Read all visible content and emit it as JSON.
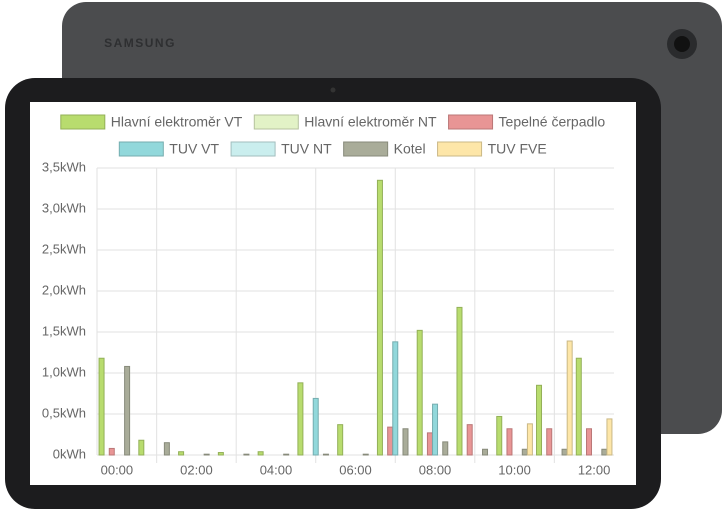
{
  "device": {
    "brand": "SAMSUNG"
  },
  "chart_data": {
    "type": "bar",
    "categories": [
      "00:00",
      null,
      "02:00",
      null,
      "04:00",
      null,
      "06:00",
      null,
      "08:00",
      null,
      "10:00",
      null,
      "12:00"
    ],
    "series": [
      {
        "name": "Hlavní elektroměr VT",
        "color": "#b8dc6e",
        "values": [
          1.18,
          0.18,
          0.04,
          0.03,
          0.04,
          0.88,
          0.37,
          3.35,
          1.52,
          1.8,
          0.47,
          0.85,
          1.18
        ]
      },
      {
        "name": "Hlavní elektroměr NT",
        "color": "#e2f2c6",
        "values": [
          0,
          0,
          0,
          0,
          0,
          0,
          0,
          0,
          0,
          0,
          0,
          0,
          0
        ]
      },
      {
        "name": "Tepelné čerpadlo",
        "color": "#e89595",
        "values": [
          0.08,
          0,
          0,
          0,
          0,
          0,
          0,
          0.34,
          0.27,
          0.37,
          0.32,
          0.32,
          0.32
        ]
      },
      {
        "name": "TUV VT",
        "color": "#92d8db",
        "values": [
          0,
          0,
          0,
          0,
          0,
          0.69,
          0,
          1.38,
          0.62,
          0,
          0,
          0,
          0
        ]
      },
      {
        "name": "TUV NT",
        "color": "#caeeee",
        "values": [
          0,
          0,
          0,
          0,
          0,
          0,
          0,
          0,
          0,
          0,
          0,
          0,
          0
        ]
      },
      {
        "name": "Kotel",
        "color": "#a9ac99",
        "values": [
          1.08,
          0.15,
          0.01,
          0.01,
          0.01,
          0.01,
          0.01,
          0.32,
          0.16,
          0.07,
          0.07,
          0.07,
          0.07
        ]
      },
      {
        "name": "TUV FVE",
        "color": "#fde6a8",
        "values": [
          0,
          0,
          0,
          0,
          0,
          0,
          0,
          0,
          0,
          0,
          0.38,
          1.39,
          0.44
        ]
      }
    ],
    "ylim": [
      0,
      3.5
    ],
    "yticks": [
      {
        "value": 0,
        "label": "0kWh"
      },
      {
        "value": 0.5,
        "label": "0,5kWh"
      },
      {
        "value": 1,
        "label": "1,0kWh"
      },
      {
        "value": 1.5,
        "label": "1,5kWh"
      },
      {
        "value": 2,
        "label": "2,0kWh"
      },
      {
        "value": 2.5,
        "label": "2,5kWh"
      },
      {
        "value": 3,
        "label": "3,0kWh"
      },
      {
        "value": 3.5,
        "label": "3,5kWh"
      }
    ],
    "grid": true,
    "legend": "top"
  }
}
